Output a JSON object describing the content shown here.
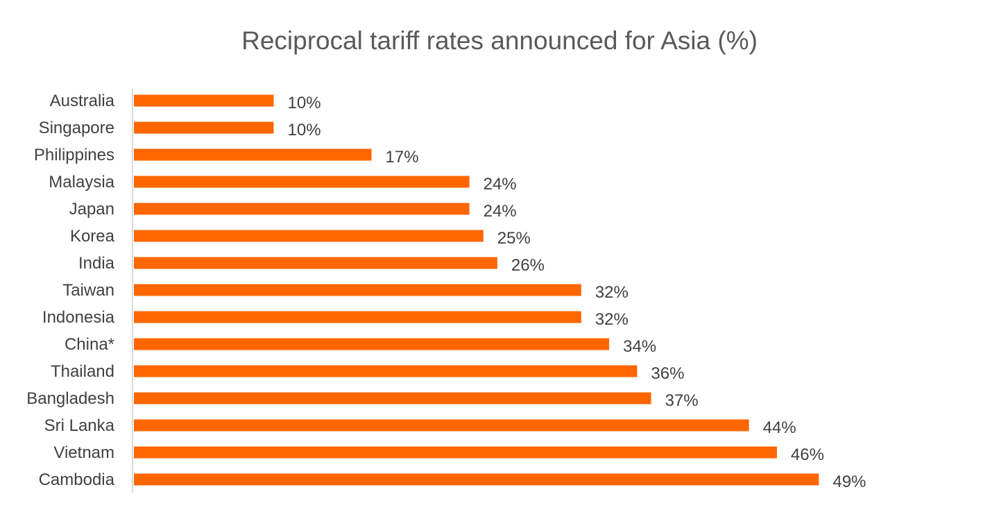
{
  "chart_data": {
    "type": "bar",
    "orientation": "horizontal",
    "title": "Reciprocal tariff rates announced for Asia (%)",
    "xlabel": "",
    "ylabel": "",
    "categories": [
      "Australia",
      "Singapore",
      "Philippines",
      "Malaysia",
      "Japan",
      "Korea",
      "India",
      "Taiwan",
      "Indonesia",
      "China*",
      "Thailand",
      "Bangladesh",
      "Sri Lanka",
      "Vietnam",
      "Cambodia"
    ],
    "values": [
      10,
      10,
      17,
      24,
      24,
      25,
      26,
      32,
      32,
      34,
      36,
      37,
      44,
      46,
      49
    ],
    "value_labels": [
      "10%",
      "10%",
      "17%",
      "24%",
      "24%",
      "25%",
      "26%",
      "32%",
      "32%",
      "34%",
      "36%",
      "37%",
      "44%",
      "46%",
      "49%"
    ],
    "xlim": [
      0,
      50
    ],
    "grid": false,
    "legend": "none",
    "bar_color": "#ff6600"
  }
}
